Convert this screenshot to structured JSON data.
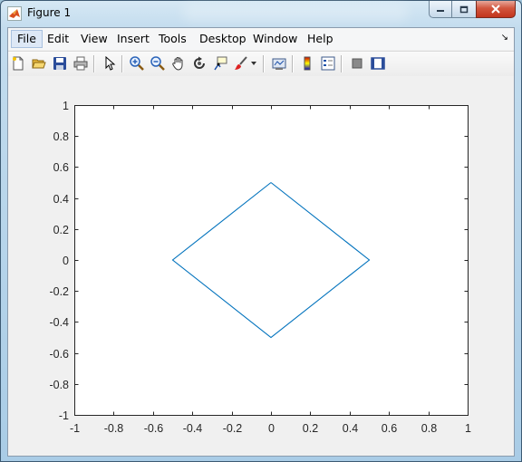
{
  "window": {
    "title": "Figure 1"
  },
  "menubar": {
    "items": [
      "File",
      "Edit",
      "View",
      "Insert",
      "Tools",
      "Desktop",
      "Window",
      "Help"
    ],
    "active_index": 0
  },
  "toolbar": {
    "icons": [
      "new-figure-icon",
      "open-file-icon",
      "save-icon",
      "print-icon",
      "edit-plot-arrow-icon",
      "zoom-in-icon",
      "zoom-out-icon",
      "pan-hand-icon",
      "rotate-3d-icon",
      "data-cursor-icon",
      "brush-icon",
      "link-plot-icon",
      "colorbar-icon",
      "legend-icon",
      "hide-plot-tools-icon",
      "show-plot-tools-icon"
    ]
  },
  "chart_data": {
    "type": "line",
    "x": [
      0,
      0.5,
      0,
      -0.5,
      0
    ],
    "y": [
      0.5,
      0,
      -0.5,
      0,
      0.5
    ],
    "xlim": [
      -1,
      1
    ],
    "ylim": [
      -1,
      1
    ],
    "xticks": [
      "-1",
      "-0.8",
      "-0.6",
      "-0.4",
      "-0.2",
      "0",
      "0.2",
      "0.4",
      "0.6",
      "0.8",
      "1"
    ],
    "yticks": [
      "1",
      "0.8",
      "0.6",
      "0.4",
      "0.2",
      "0",
      "-0.2",
      "-0.4",
      "-0.6",
      "-0.8",
      "-1"
    ],
    "line_color": "#0072BD",
    "grid": false,
    "title": "",
    "xlabel": "",
    "ylabel": ""
  }
}
